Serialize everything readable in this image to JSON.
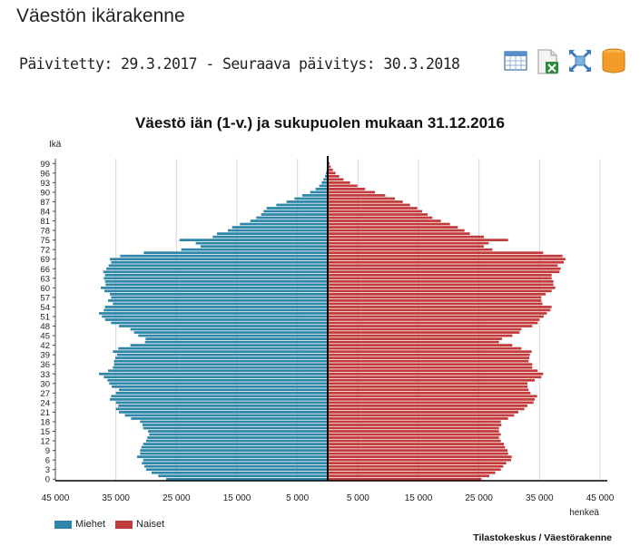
{
  "page": {
    "title": "Väestön ikärakenne",
    "updated": "Päivitetty: 29.3.2017 - Seuraava päivitys: 30.3.2018",
    "source": "Tilastokeskus / Väestörakenne"
  },
  "toolbar": {
    "icons": [
      "table-icon",
      "excel-export-icon",
      "fullscreen-icon",
      "database-icon"
    ]
  },
  "chart_data": {
    "type": "bar",
    "orientation": "horizontal-population-pyramid",
    "title": "Väestö iän (1-v.) ja sukupuolen mukaan 31.12.2016",
    "ylabel": "Ikä",
    "xlabel": "henkeä",
    "y_ticks": [
      "99",
      "96",
      "93",
      "90",
      "87",
      "84",
      "81",
      "78",
      "75",
      "72",
      "69",
      "66",
      "63",
      "60",
      "57",
      "54",
      "51",
      "48",
      "45",
      "42",
      "39",
      "36",
      "33",
      "30",
      "27",
      "24",
      "21",
      "18",
      "15",
      "12",
      "9",
      "6",
      "3",
      "0"
    ],
    "x_ticks": [
      "45 000",
      "35 000",
      "25 000",
      "15 000",
      "5 000",
      "5 000",
      "15 000",
      "25 000",
      "35 000",
      "45 000"
    ],
    "x_tick_values": [
      -45000,
      -35000,
      -25000,
      -15000,
      -5000,
      5000,
      15000,
      25000,
      35000,
      45000
    ],
    "xlim": [
      -45000,
      45000
    ],
    "ages": [
      0,
      1,
      2,
      3,
      4,
      5,
      6,
      7,
      8,
      9,
      10,
      11,
      12,
      13,
      14,
      15,
      16,
      17,
      18,
      19,
      20,
      21,
      22,
      23,
      24,
      25,
      26,
      27,
      28,
      29,
      30,
      31,
      32,
      33,
      34,
      35,
      36,
      37,
      38,
      39,
      40,
      41,
      42,
      43,
      44,
      45,
      46,
      47,
      48,
      49,
      50,
      51,
      52,
      53,
      54,
      55,
      56,
      57,
      58,
      59,
      60,
      61,
      62,
      63,
      64,
      65,
      66,
      67,
      68,
      69,
      70,
      71,
      72,
      73,
      74,
      75,
      76,
      77,
      78,
      79,
      80,
      81,
      82,
      83,
      84,
      85,
      86,
      87,
      88,
      89,
      90,
      91,
      92,
      93,
      94,
      95,
      96,
      97,
      98,
      99,
      100
    ],
    "legend_position": "bottom-left",
    "grid": true,
    "series": [
      {
        "name": "Miehet",
        "color": "#2e86a8",
        "values": [
          26700,
          28000,
          29100,
          30000,
          30300,
          30700,
          30500,
          31500,
          31000,
          31000,
          30800,
          30500,
          30000,
          29800,
          29500,
          29700,
          30500,
          30600,
          31000,
          32500,
          33500,
          34500,
          35000,
          34600,
          35000,
          36000,
          35800,
          35000,
          34500,
          35700,
          36100,
          36400,
          37000,
          37800,
          36300,
          35500,
          35300,
          35300,
          35100,
          34800,
          35500,
          34600,
          32600,
          30200,
          30100,
          31300,
          32000,
          32600,
          34500,
          35800,
          36800,
          37300,
          37800,
          37000,
          36800,
          35500,
          36300,
          35800,
          36000,
          36900,
          37500,
          36700,
          36800,
          37000,
          36800,
          37100,
          36600,
          36200,
          35800,
          36000,
          34300,
          30400,
          24200,
          21000,
          21800,
          24500,
          19000,
          18300,
          16500,
          15800,
          14500,
          12800,
          11800,
          11000,
          10600,
          10100,
          8500,
          6800,
          5500,
          4200,
          2900,
          2000,
          1400,
          1000,
          700,
          450,
          300,
          180,
          100,
          60,
          30
        ]
      },
      {
        "name": "Naiset",
        "color": "#c23b3b",
        "values": [
          25400,
          26700,
          27700,
          28600,
          29000,
          29500,
          30300,
          30400,
          29800,
          29700,
          29300,
          29100,
          28600,
          28300,
          28600,
          28300,
          28300,
          28700,
          28600,
          29800,
          30800,
          31500,
          32500,
          33000,
          34000,
          34200,
          34600,
          33500,
          33200,
          33000,
          33000,
          34200,
          35300,
          35600,
          34700,
          33800,
          33800,
          33200,
          33300,
          33400,
          33700,
          32000,
          30500,
          28300,
          28800,
          30500,
          31700,
          32000,
          33800,
          34700,
          35000,
          35700,
          36200,
          36800,
          37000,
          35500,
          35300,
          35300,
          36000,
          37000,
          37600,
          37300,
          37300,
          37000,
          37000,
          38300,
          38500,
          38000,
          39000,
          39300,
          38800,
          35600,
          27200,
          25800,
          26600,
          29800,
          25800,
          23500,
          22600,
          21500,
          20200,
          18700,
          17300,
          16500,
          15600,
          14800,
          13600,
          12400,
          11100,
          9500,
          7800,
          6200,
          4900,
          3700,
          2600,
          1900,
          1300,
          850,
          500,
          300,
          150
        ]
      }
    ]
  }
}
